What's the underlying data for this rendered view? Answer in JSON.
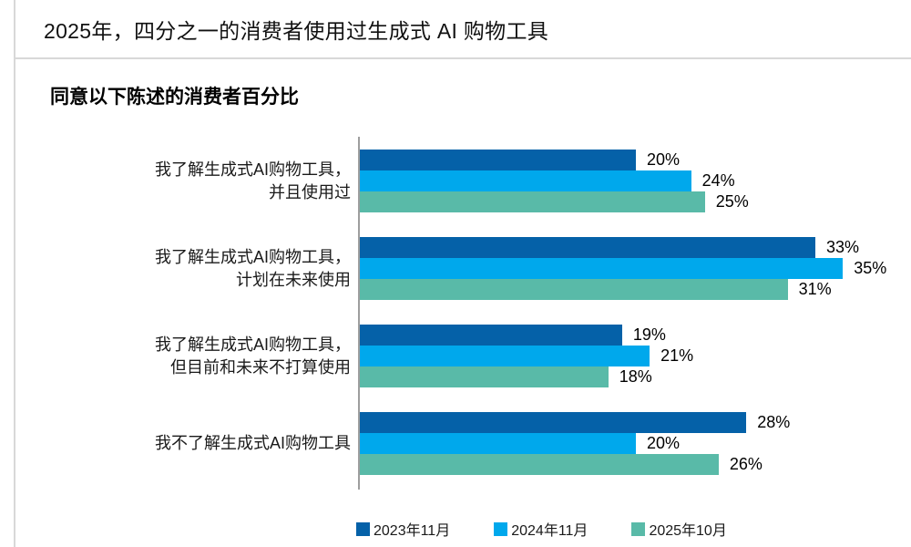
{
  "header": {
    "title": "2025年，四分之一的消费者使用过生成式 AI 购物工具"
  },
  "colors": {
    "series_2023": "#0561A8",
    "series_2024": "#00A8EC",
    "series_2025": "#59BAA8",
    "axis_line": "#9E9E9E",
    "rule": "#D8D8D8"
  },
  "chart_data": {
    "type": "bar",
    "orientation": "horizontal",
    "title": "同意以下陈述的消费者百分比",
    "unit": "%",
    "grid": false,
    "legend_position": "bottom",
    "categories": [
      [
        "我了解生成式AI购物工具，",
        "并且使用过"
      ],
      [
        "我了解生成式AI购物工具，",
        "计划在未来使用"
      ],
      [
        "我了解生成式AI购物工具，",
        "但目前和未来不打算使用"
      ],
      [
        "我不了解生成式AI购物工具"
      ]
    ],
    "series": [
      {
        "name": "2023年11月",
        "color": "#0561A8",
        "values": [
          20,
          33,
          19,
          28
        ]
      },
      {
        "name": "2024年11月",
        "color": "#00A8EC",
        "values": [
          24,
          35,
          21,
          20
        ]
      },
      {
        "name": "2025年10月",
        "color": "#59BAA8",
        "values": [
          25,
          31,
          18,
          26
        ]
      }
    ]
  }
}
